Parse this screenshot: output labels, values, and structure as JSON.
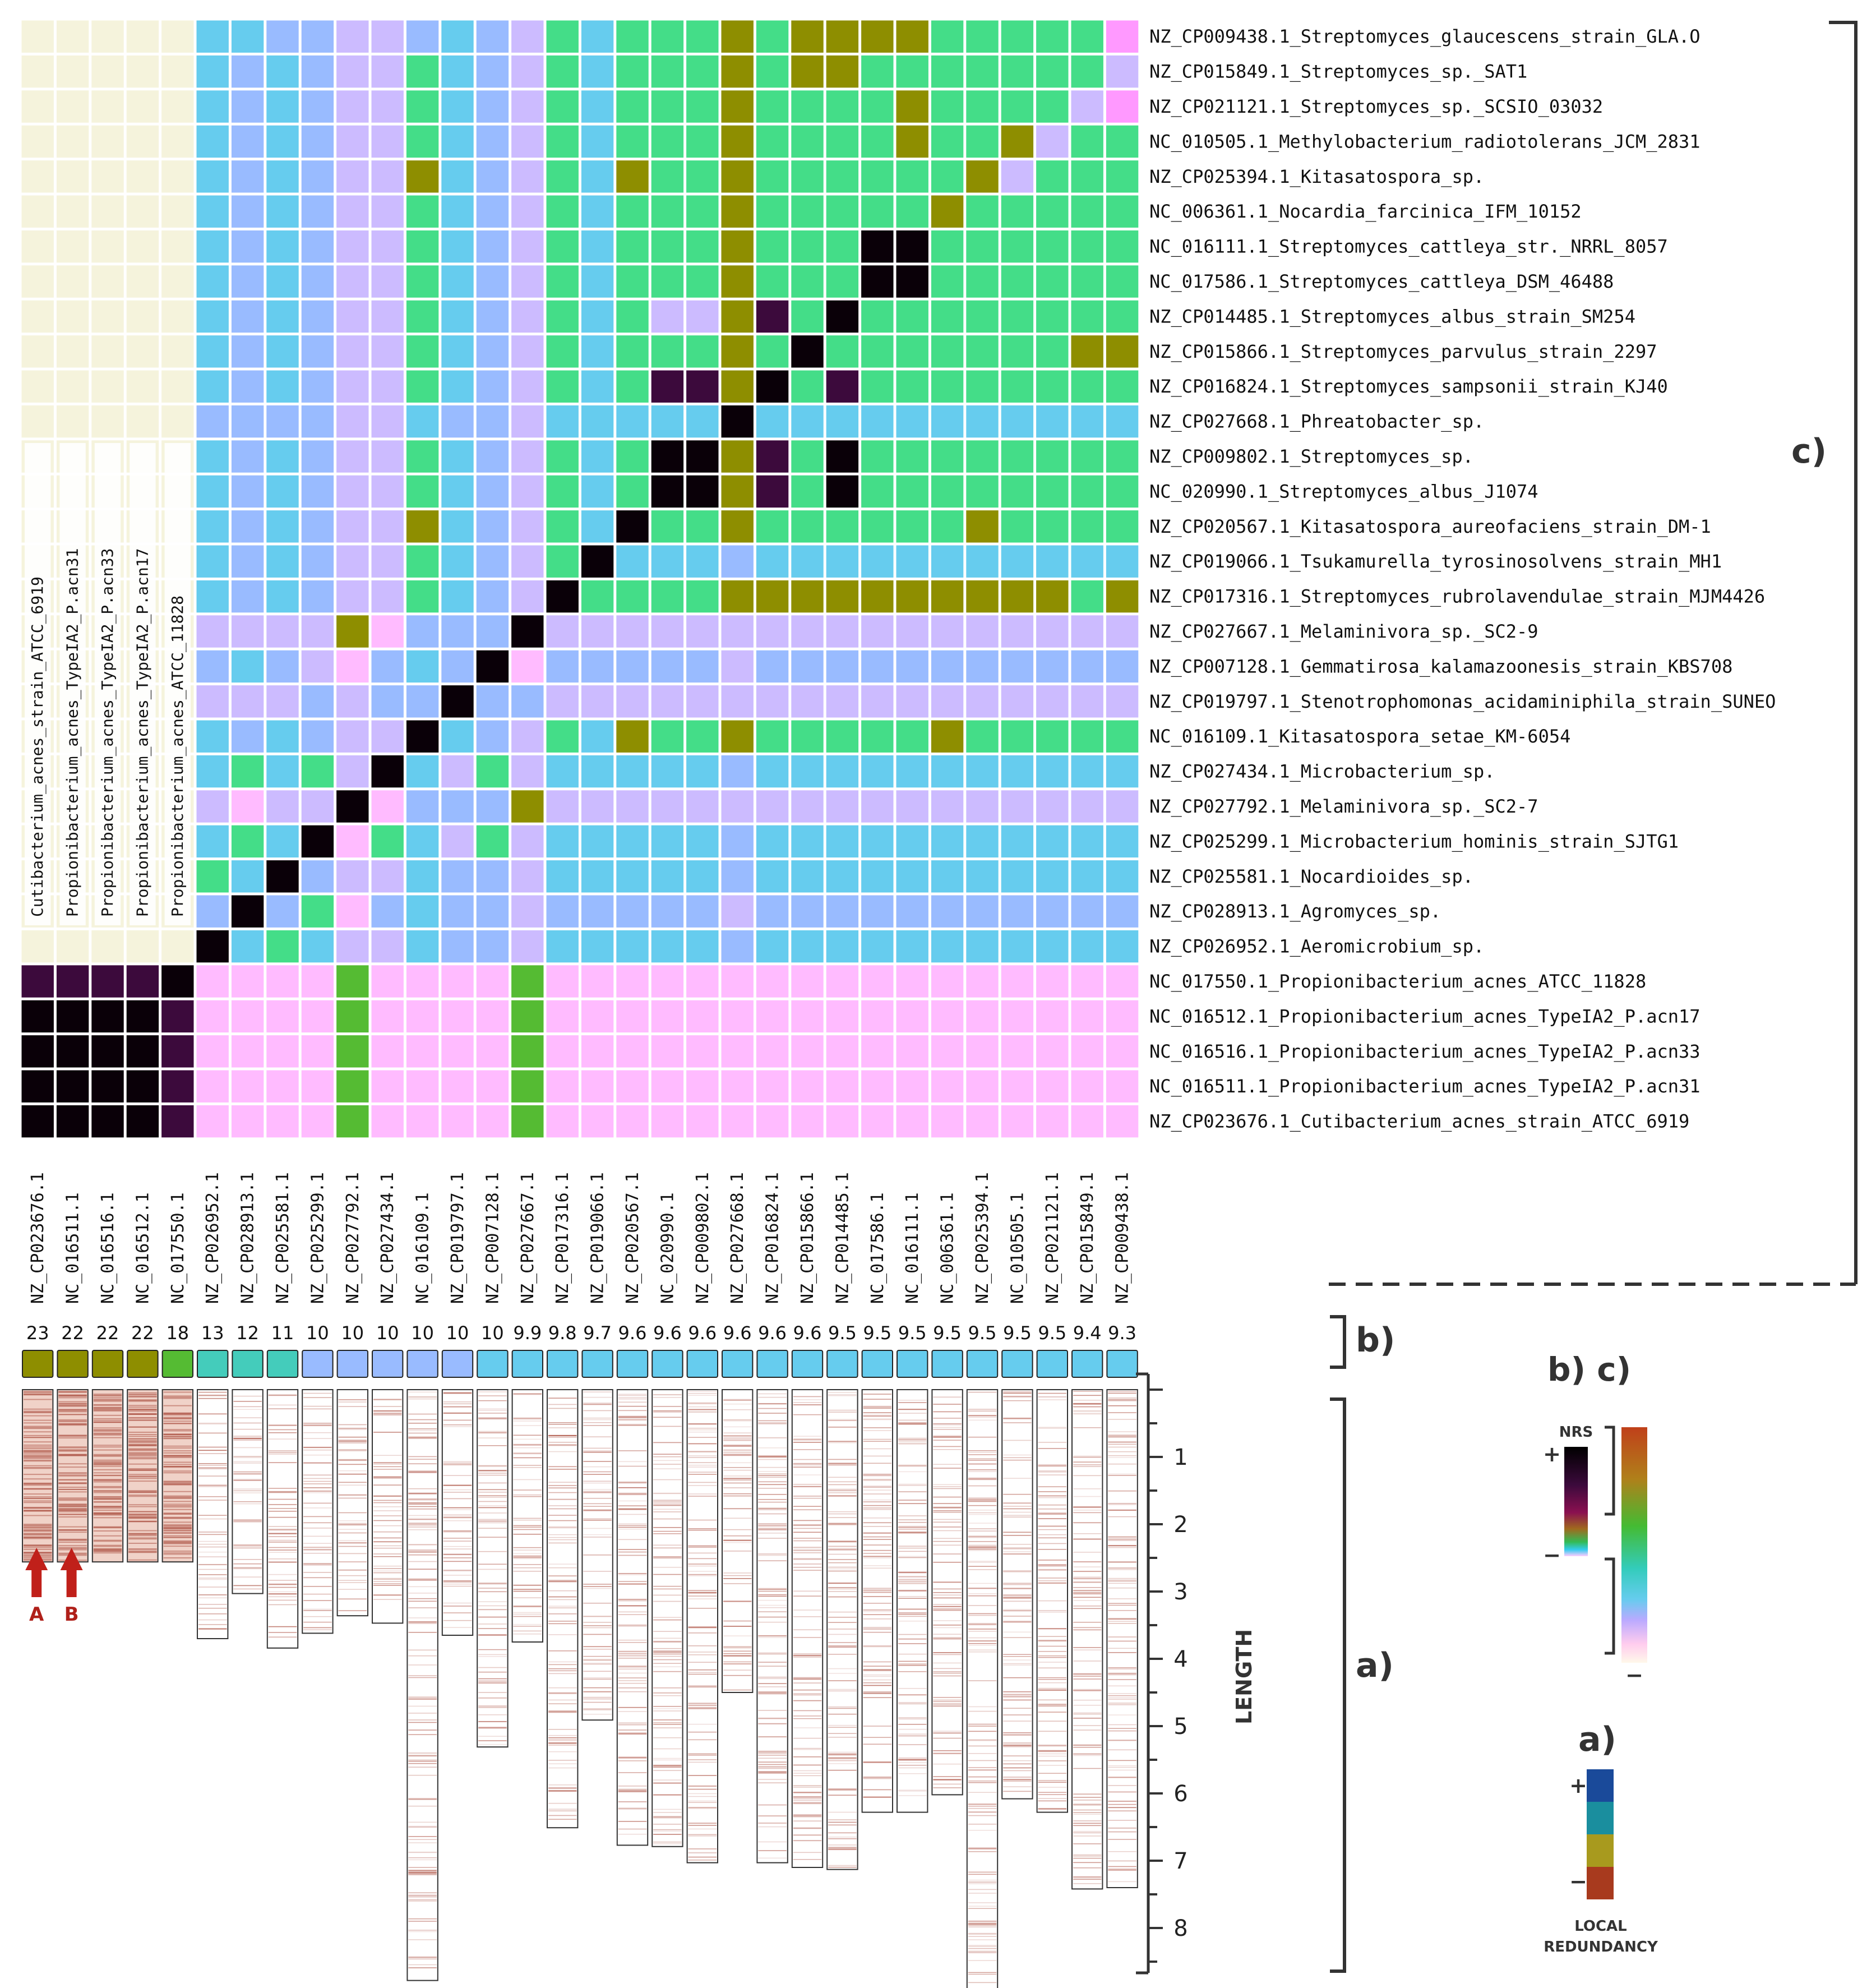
{
  "chart_data": {
    "type": "heatmap",
    "title": "",
    "genomes_ordered": [
      {
        "accession": "NZ_CP023676.1",
        "name": "NZ_CP023676.1_Cutibacterium_acnes_strain_ATCC_6919",
        "nrs": "23",
        "length": 2.56
      },
      {
        "accession": "NC_016511.1",
        "name": "NC_016511.1_Propionibacterium_acnes_TypeIA2_P.acn31",
        "nrs": "22",
        "length": 2.56
      },
      {
        "accession": "NC_016516.1",
        "name": "NC_016516.1_Propionibacterium_acnes_TypeIA2_P.acn33",
        "nrs": "22",
        "length": 2.56
      },
      {
        "accession": "NC_016512.1",
        "name": "NC_016512.1_Propionibacterium_acnes_TypeIA2_P.acn17",
        "nrs": "22",
        "length": 2.56
      },
      {
        "accession": "NC_017550.1",
        "name": "NC_017550.1_Propionibacterium_acnes_ATCC_11828",
        "nrs": "18",
        "length": 2.56
      },
      {
        "accession": "NZ_CP026952.1",
        "name": "NZ_CP026952.1_Aeromicrobium_sp.",
        "nrs": "13",
        "length": 3.7
      },
      {
        "accession": "NZ_CP028913.1",
        "name": "NZ_CP028913.1_Agromyces_sp.",
        "nrs": "12",
        "length": 3.03
      },
      {
        "accession": "NZ_CP025581.1",
        "name": "NZ_CP025581.1_Nocardioides_sp.",
        "nrs": "11",
        "length": 3.84
      },
      {
        "accession": "NZ_CP025299.1",
        "name": "NZ_CP025299.1_Microbacterium_hominis_strain_SJTG1",
        "nrs": "10",
        "length": 3.62
      },
      {
        "accession": "NZ_CP027792.1",
        "name": "NZ_CP027792.1_Melaminivora_sp._SC2-7",
        "nrs": "10",
        "length": 3.36
      },
      {
        "accession": "NZ_CP027434.1",
        "name": "NZ_CP027434.1_Microbacterium_sp.",
        "nrs": "10",
        "length": 3.47
      },
      {
        "accession": "NC_016109.1",
        "name": "NC_016109.1_Kitasatospora_setae_KM-6054",
        "nrs": "10",
        "length": 8.78
      },
      {
        "accession": "NZ_CP019797.1",
        "name": "NZ_CP019797.1_Stenotrophomonas_acidaminiphila_strain_SUNEO",
        "nrs": "10",
        "length": 3.65
      },
      {
        "accession": "NZ_CP007128.1",
        "name": "NZ_CP007128.1_Gemmatirosa_kalamazoonesis_strain_KBS708",
        "nrs": "10",
        "length": 5.31
      },
      {
        "accession": "NZ_CP027667.1",
        "name": "NZ_CP027667.1_Melaminivora_sp._SC2-9",
        "nrs": "9.9",
        "length": 3.75
      },
      {
        "accession": "NZ_CP017316.1",
        "name": "NZ_CP017316.1_Streptomyces_rubrolavendulae_strain_MJM4426",
        "nrs": "9.8",
        "length": 6.51
      },
      {
        "accession": "NZ_CP019066.1",
        "name": "NZ_CP019066.1_Tsukamurella_tyrosinosolvens_strain_MH1",
        "nrs": "9.7",
        "length": 4.91
      },
      {
        "accession": "NZ_CP020567.1",
        "name": "NZ_CP020567.1_Kitasatospora_aureofaciens_strain_DM-1",
        "nrs": "9.6",
        "length": 6.77
      },
      {
        "accession": "NC_020990.1",
        "name": "NC_020990.1_Streptomyces_albus_J1074",
        "nrs": "9.6",
        "length": 6.79
      },
      {
        "accession": "NZ_CP009802.1",
        "name": "NZ_CP009802.1_Streptomyces_sp.",
        "nrs": "9.6",
        "length": 7.03
      },
      {
        "accession": "NZ_CP027668.1",
        "name": "NZ_CP027668.1_Phreatobacter_sp.",
        "nrs": "9.6",
        "length": 4.5
      },
      {
        "accession": "NZ_CP016824.1",
        "name": "NZ_CP016824.1_Streptomyces_sampsonii_strain_KJ40",
        "nrs": "9.6",
        "length": 7.03
      },
      {
        "accession": "NZ_CP015866.1",
        "name": "NZ_CP015866.1_Streptomyces_parvulus_strain_2297",
        "nrs": "9.6",
        "length": 7.1
      },
      {
        "accession": "NZ_CP014485.1",
        "name": "NZ_CP014485.1_Streptomyces_albus_strain_SM254",
        "nrs": "9.5",
        "length": 7.13
      },
      {
        "accession": "NC_017586.1",
        "name": "NC_017586.1_Streptomyces_cattleya_DSM_46488",
        "nrs": "9.5",
        "length": 6.28
      },
      {
        "accession": "NC_016111.1",
        "name": "NC_016111.1_Streptomyces_cattleya_str._NRRL_8057",
        "nrs": "9.5",
        "length": 6.28
      },
      {
        "accession": "NC_006361.1",
        "name": "NC_006361.1_Nocardia_farcinica_IFM_10152",
        "nrs": "9.5",
        "length": 6.02
      },
      {
        "accession": "NZ_CP025394.1",
        "name": "NZ_CP025394.1_Kitasatospora_sp.",
        "nrs": "9.5",
        "length": 8.98
      },
      {
        "accession": "NC_010505.1",
        "name": "NC_010505.1_Methylobacterium_radiotolerans_JCM_2831",
        "nrs": "9.5",
        "length": 6.08
      },
      {
        "accession": "NZ_CP021121.1",
        "name": "NZ_CP021121.1_Streptomyces_sp._SCSIO_03032",
        "nrs": "9.5",
        "length": 6.28
      },
      {
        "accession": "NZ_CP015849.1",
        "name": "NZ_CP015849.1_Streptomyces_sp._SAT1",
        "nrs": "9.4",
        "length": 7.42
      },
      {
        "accession": "NZ_CP009438.1",
        "name": "NZ_CP009438.1_Streptomyces_glaucescens_strain_GLA.O",
        "nrs": "9.3",
        "length": 7.4
      }
    ],
    "row_order_top_to_bottom": [
      31,
      30,
      29,
      28,
      27,
      26,
      25,
      24,
      23,
      22,
      21,
      20,
      19,
      18,
      17,
      16,
      15,
      14,
      13,
      12,
      11,
      10,
      9,
      8,
      7,
      6,
      5,
      4,
      3,
      2,
      1,
      0
    ],
    "acnes_column_labels": [
      "Cutibacterium_acnes_strain_ATCC_6919",
      "Propionibacterium_acnes_TypeIA2_P.acn31",
      "Propionibacterium_acnes_TypeIA2_P.acn33",
      "Propionibacterium_acnes_TypeIA2_P.acn17",
      "Propionibacterium_acnes_ATCC_11828"
    ],
    "similarity_matrix_color_classes": [
      "GGGGGCCBBPPBCBPHCHHHOHOOOOHHHHHE",
      "GGGGGCBCBPPHCBPHCHHHOHOOHHHHHHHP",
      "GGGGGCBCBPPHCBPHCHHHOHHHHOHHHHPE",
      "GGGGGCBCBPPHCBPHCHHHOHHHHOHHOPHH",
      "GGGGGCBCBPPOCBPHCOHHOHHHHHHOPHHH",
      "GGGGGCBCBPPHCBPHCHHHOHHHHHOHHHHH",
      "GGGGGCBCBPPHCBPHCHHHOHHHXXHHHHHH",
      "GGGGGCBCBPPHCBPHCHHHOHHHXXHHHHHH",
      "GGGGGCBCBPPHCBPHCHPPOMHXHHHHHHHH",
      "GGGGGCBCBPPHCBPHCHHHOHXHHHHHHHOO",
      "GGGGGCBCBPPHCBPHCHMMOXHMHHHHHHHH",
      "GGGGGBBBBPPCBBPCCCCCXCCCCCCCCCCC",
      "GGGGGCBCBPPHCBPHCHXXOMHXHHHHHHHH",
      "GGGGGCBCBPPHCBPHCHXXOMHXHHHHHHHH",
      "GGGGGCBCBPPOCBPHCXHHOHHHHHHOHHHH",
      "GGGGGCBCBPPHCBPHXCCCBCCCCCCCCCCC",
      "GGGGGCBCBPPHCBPXHHHHOOOOOOOOOOHO",
      "GGGGGPPPPOKBBBXPPPPPPPPPPPPPPPPP",
      "GGGGGBCBPKBCBXKBBBBBPBBBBBBBBBBB",
      "GGGGGPPPBPBBXBBPPPPPPPPPPPPPPPPP",
      "GGGGGCBCBPPXCBPHCOHHOHHHHHOHHHHH",
      "GGGGGCHCHPXCPHPCCCCCBCCCCCCCCCCC",
      "GGGGGPKPPXKBBBOPPPPPPPPPPPPPPPPP",
      "GGGGGCHCXKHCPHPCCCCCBCCCCCCCCCCC",
      "GGGGGHCXBPPCBBPCCCCCBCCCCCCCCCCC",
      "GGGGGBXBHKBCBBPBBBBBPBBBBBBBBBBB",
      "GGGGGXCHCPPCBBPCCCCCBCCCCCCCCCCC",
      "MMMMXKKKKLKKKKLKKKKKKKKKKKKKKKKK",
      "XXXXMKKKKLKKKKLKKKKKKKKKKKKKKKKK",
      "XXXXMKKKKLKKKKLKKKKKKKKKKKKKKKKK",
      "XXXXMKKKKLKKKKLKKKKKKKKKKKKKKKKK",
      "XXXXMKKKKLKKKKLKKKKKKKKKKKKKKKKK"
    ],
    "nrs_strip_color_classes": "OOOOLTTTBBBBBCCCCCCCCCCCCCCCCCCC",
    "color_classes": {
      "X": "#0a0008",
      "M": "#3c0a3c",
      "N": "#6a0a4a",
      "O": "#8e8e00",
      "L": "#55bb33",
      "H": "#44dd88",
      "G": "#f5f3dc",
      "T": "#44ccbb",
      "C": "#66ccee",
      "B": "#99bbff",
      "P": "#ccbbff",
      "K": "#ffbbff",
      "Q": "#ffcce0",
      "E": "#ff99ff"
    },
    "panel_labels": {
      "a": "a)",
      "b": "b)",
      "c": "c)",
      "bc": "b) c)"
    },
    "length_axis": {
      "label": "LENGTH",
      "ticks": [
        "1",
        "2",
        "3",
        "4",
        "5",
        "6",
        "7",
        "8"
      ],
      "range": [
        0,
        9
      ]
    },
    "arrows": [
      {
        "label": "A",
        "column": 0
      },
      {
        "label": "B",
        "column": 1
      }
    ],
    "legend_nrs": {
      "title": "NRS",
      "plus": "+",
      "minus": "−",
      "minus2": "−"
    },
    "legend_local": {
      "title1": "LOCAL",
      "title2": "REDUNDANCY",
      "plus": "+",
      "minus": "−",
      "colors": [
        "#1a4a9a",
        "#1a8e9e",
        "#a89a1e",
        "#a83a1e"
      ]
    },
    "redundancy_color": "#b0584a"
  }
}
